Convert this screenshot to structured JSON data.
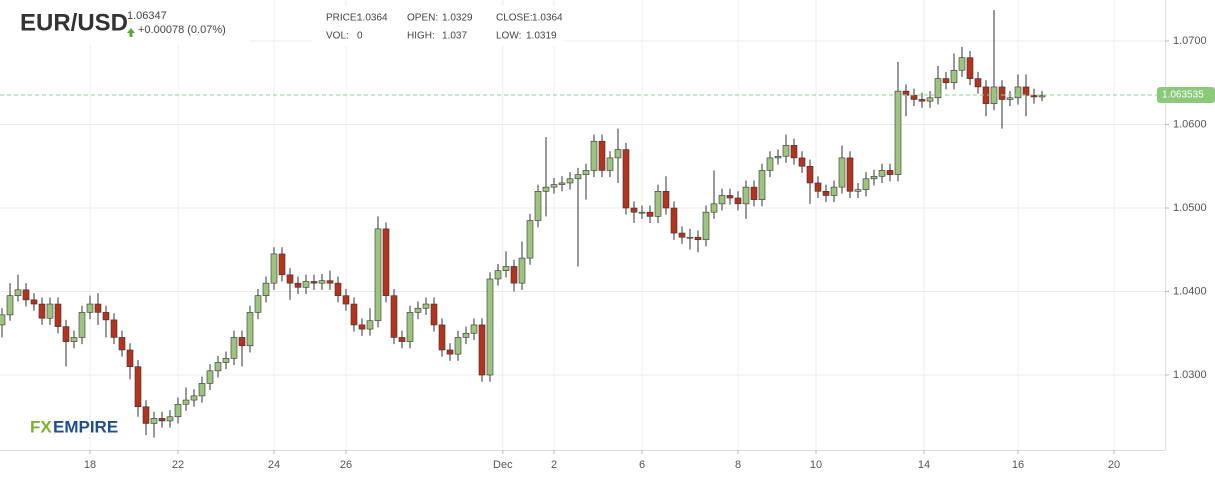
{
  "chart_data": {
    "type": "candlestick",
    "title": "EUR/USD",
    "price": 1.06347,
    "change": "+0.00078 (0.07%)",
    "info": [
      {
        "label": "PRICE:",
        "value": 1.0364
      },
      {
        "label": "OPEN:",
        "value": 1.0329
      },
      {
        "label": "CLOSE:",
        "value": 1.0364
      },
      {
        "label": "VOL:",
        "value": 0
      },
      {
        "label": "HIGH:",
        "value": 1.037
      },
      {
        "label": "LOW:",
        "value": 1.0319
      }
    ],
    "logo": [
      "FX",
      "EMPIRE"
    ],
    "last_price": 1.063535,
    "up_color": "#9cc47f",
    "down_color": "#b5321d",
    "xlim": [
      -0.25,
      145.375
    ],
    "ylim": [
      1.02102,
      1.07491
    ],
    "xticks": [
      {
        "value": 11,
        "label": "18"
      },
      {
        "value": 22,
        "label": "22"
      },
      {
        "value": 34,
        "label": "24"
      },
      {
        "value": 43,
        "label": "26"
      },
      {
        "value": 62.6,
        "label": "Dec"
      },
      {
        "value": 69,
        "label": "2"
      },
      {
        "value": 80,
        "label": "6"
      },
      {
        "value": 92,
        "label": "8"
      },
      {
        "value": 101.75,
        "label": "10"
      },
      {
        "value": 115.25,
        "label": "14"
      },
      {
        "value": 127,
        "label": "16"
      },
      {
        "value": 139,
        "label": "20"
      }
    ],
    "yticks": [
      {
        "value": 1.03,
        "label": "1.0300"
      },
      {
        "value": 1.04,
        "label": "1.0400"
      },
      {
        "value": 1.05,
        "label": "1.0500"
      },
      {
        "value": 1.06,
        "label": "1.0600"
      },
      {
        "value": 1.07,
        "label": "1.0700"
      }
    ],
    "grid": true,
    "open": [
      1.036,
      1.0372,
      1.0395,
      1.0402,
      1.039,
      1.0385,
      1.0368,
      1.0385,
      1.0358,
      1.034,
      1.0345,
      1.0375,
      1.0385,
      1.0375,
      1.0366,
      1.0345,
      1.033,
      1.031,
      1.0262,
      1.0242,
      1.0248,
      1.0245,
      1.025,
      1.0265,
      1.027,
      1.0275,
      1.029,
      1.0305,
      1.0315,
      1.032,
      1.0345,
      1.0335,
      1.0375,
      1.0395,
      1.041,
      1.0445,
      1.042,
      1.041,
      1.0405,
      1.0412,
      1.041,
      1.0413,
      1.041,
      1.0395,
      1.0385,
      1.036,
      1.0355,
      1.0365,
      1.0475,
      1.0395,
      1.0345,
      1.034,
      1.0375,
      1.038,
      1.0385,
      1.036,
      1.033,
      1.0325,
      1.0345,
      1.035,
      1.036,
      1.03,
      1.0415,
      1.0425,
      1.043,
      1.041,
      1.044,
      1.0485,
      1.052,
      1.0525,
      1.0528,
      1.053,
      1.0535,
      1.054,
      1.0545,
      1.058,
      1.0545,
      1.056,
      1.057,
      1.05,
      1.0495,
      1.0495,
      1.049,
      1.052,
      1.05,
      1.047,
      1.0465,
      1.0465,
      1.0462,
      1.0495,
      1.0505,
      1.0515,
      1.0512,
      1.0505,
      1.0525,
      1.051,
      1.0545,
      1.056,
      1.0562,
      1.0575,
      1.056,
      1.055,
      1.053,
      1.052,
      1.0515,
      1.0525,
      1.056,
      1.052,
      1.0522,
      1.0535,
      1.0538,
      1.0545,
      1.054,
      1.064,
      1.0635,
      1.063,
      1.0628,
      1.0632,
      1.0655,
      1.065,
      1.0665,
      1.068,
      1.0655,
      1.0645,
      1.0625,
      1.0645,
      1.063,
      1.0632,
      1.0645,
      1.0635,
      1.0633
    ],
    "high": [
      1.038,
      1.041,
      1.042,
      1.041,
      1.0398,
      1.0393,
      1.0393,
      1.0393,
      1.0366,
      1.0353,
      1.0383,
      1.0395,
      1.0398,
      1.0383,
      1.0374,
      1.0353,
      1.0338,
      1.0318,
      1.027,
      1.0256,
      1.0256,
      1.0258,
      1.0273,
      1.0285,
      1.0283,
      1.0298,
      1.0313,
      1.0323,
      1.0328,
      1.0353,
      1.0353,
      1.0383,
      1.0403,
      1.0418,
      1.0453,
      1.0453,
      1.0428,
      1.0418,
      1.042,
      1.042,
      1.0421,
      1.0425,
      1.0418,
      1.0403,
      1.0393,
      1.0368,
      1.038,
      1.049,
      1.0483,
      1.0403,
      1.0353,
      1.0383,
      1.0388,
      1.0393,
      1.0393,
      1.0368,
      1.0338,
      1.0353,
      1.0358,
      1.0368,
      1.0368,
      1.0423,
      1.0433,
      1.0448,
      1.0438,
      1.046,
      1.0493,
      1.0528,
      1.0585,
      1.0536,
      1.0538,
      1.0543,
      1.0548,
      1.0553,
      1.0588,
      1.0588,
      1.0568,
      1.0595,
      1.0578,
      1.0508,
      1.0503,
      1.0503,
      1.0528,
      1.0538,
      1.0508,
      1.0478,
      1.0475,
      1.0473,
      1.0503,
      1.0545,
      1.0523,
      1.0523,
      1.052,
      1.0533,
      1.0533,
      1.0553,
      1.0568,
      1.057,
      1.0588,
      1.0583,
      1.0568,
      1.0558,
      1.0538,
      1.0528,
      1.0533,
      1.0575,
      1.0568,
      1.053,
      1.0543,
      1.0546,
      1.0553,
      1.0553,
      1.0675,
      1.0648,
      1.0643,
      1.0638,
      1.064,
      1.067,
      1.0663,
      1.0685,
      1.0693,
      1.0688,
      1.0663,
      1.0653,
      1.0737,
      1.0653,
      1.064,
      1.066,
      1.066,
      1.0643,
      1.064
    ],
    "low": [
      1.0345,
      1.0365,
      1.0388,
      1.0382,
      1.0377,
      1.036,
      1.036,
      1.035,
      1.031,
      1.0332,
      1.0337,
      1.0367,
      1.036,
      1.0345,
      1.0337,
      1.0322,
      1.0295,
      1.025,
      1.0228,
      1.0225,
      1.0237,
      1.0237,
      1.0242,
      1.0257,
      1.0262,
      1.0267,
      1.0282,
      1.0297,
      1.0307,
      1.0312,
      1.031,
      1.0327,
      1.0367,
      1.0387,
      1.0402,
      1.0412,
      1.039,
      1.0397,
      1.0397,
      1.0402,
      1.0402,
      1.0402,
      1.0387,
      1.0377,
      1.0352,
      1.0347,
      1.0347,
      1.0357,
      1.0387,
      1.0337,
      1.0332,
      1.0332,
      1.0367,
      1.0372,
      1.0352,
      1.0322,
      1.0317,
      1.0317,
      1.0337,
      1.0342,
      1.0292,
      1.0292,
      1.0407,
      1.0417,
      1.04,
      1.0402,
      1.0432,
      1.0477,
      1.049,
      1.0517,
      1.052,
      1.0522,
      1.043,
      1.051,
      1.0537,
      1.0537,
      1.0537,
      1.053,
      1.0492,
      1.0482,
      1.0487,
      1.0482,
      1.0482,
      1.0492,
      1.0462,
      1.0457,
      1.045,
      1.0447,
      1.0454,
      1.0487,
      1.0497,
      1.0504,
      1.0497,
      1.0487,
      1.0502,
      1.0502,
      1.0537,
      1.0552,
      1.0554,
      1.0552,
      1.0542,
      1.0505,
      1.0512,
      1.0507,
      1.0507,
      1.0517,
      1.0512,
      1.0512,
      1.0514,
      1.0527,
      1.053,
      1.0532,
      1.0532,
      1.061,
      1.0622,
      1.062,
      1.062,
      1.0624,
      1.0642,
      1.0642,
      1.0657,
      1.0647,
      1.0637,
      1.061,
      1.0617,
      1.0595,
      1.0622,
      1.0624,
      1.061,
      1.0625,
      1.0628
    ],
    "close": [
      1.0372,
      1.0395,
      1.0402,
      1.039,
      1.0385,
      1.0368,
      1.0385,
      1.0358,
      1.034,
      1.0345,
      1.0375,
      1.0385,
      1.0375,
      1.0366,
      1.0345,
      1.033,
      1.031,
      1.0262,
      1.0242,
      1.0248,
      1.0245,
      1.025,
      1.0265,
      1.027,
      1.0275,
      1.029,
      1.0305,
      1.0315,
      1.032,
      1.0345,
      1.0335,
      1.0375,
      1.0395,
      1.041,
      1.0445,
      1.042,
      1.041,
      1.0405,
      1.0412,
      1.041,
      1.0413,
      1.041,
      1.0395,
      1.0385,
      1.036,
      1.0355,
      1.0365,
      1.0475,
      1.0395,
      1.0345,
      1.034,
      1.0375,
      1.038,
      1.0385,
      1.036,
      1.033,
      1.0325,
      1.0345,
      1.035,
      1.036,
      1.03,
      1.0415,
      1.0425,
      1.043,
      1.041,
      1.044,
      1.0485,
      1.052,
      1.0525,
      1.0528,
      1.053,
      1.0535,
      1.054,
      1.0545,
      1.058,
      1.0545,
      1.056,
      1.057,
      1.05,
      1.0495,
      1.0495,
      1.049,
      1.052,
      1.05,
      1.047,
      1.0465,
      1.0465,
      1.0462,
      1.0495,
      1.0505,
      1.0515,
      1.0512,
      1.0505,
      1.0525,
      1.051,
      1.0545,
      1.056,
      1.0562,
      1.0575,
      1.056,
      1.055,
      1.053,
      1.052,
      1.0515,
      1.0525,
      1.056,
      1.052,
      1.0522,
      1.0535,
      1.0538,
      1.0545,
      1.054,
      1.064,
      1.0635,
      1.063,
      1.0628,
      1.0632,
      1.0655,
      1.065,
      1.0665,
      1.068,
      1.0655,
      1.0645,
      1.0625,
      1.0645,
      1.063,
      1.0632,
      1.0645,
      1.0635,
      1.0633,
      1.0635
    ]
  }
}
